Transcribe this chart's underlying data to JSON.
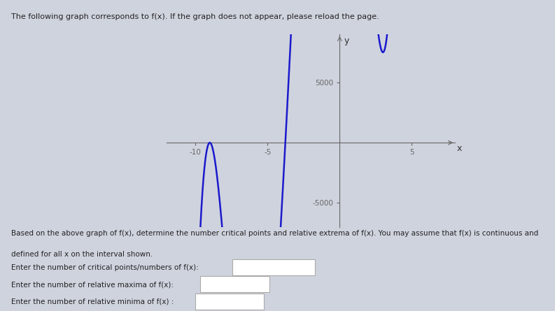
{
  "title_text": "The following graph corresponds to f(x). If the graph does not appear, please reload the page.",
  "bg_color": "#cfd3de",
  "curve_color": "#1a1acc",
  "axis_color": "#666666",
  "xlim": [
    -12,
    8
  ],
  "ylim": [
    -7000,
    9000
  ],
  "xlabel": "x",
  "ylabel": "y",
  "xtick_vals": [
    -10,
    -5,
    5
  ],
  "xtick_labels": [
    "-10",
    "-5",
    "5"
  ],
  "ytick_vals": [
    -5000,
    5000
  ],
  "ytick_labels": [
    "-5000",
    "5000"
  ],
  "text_line1": "Based on the above graph of f(x), determine the number critical points and relative extrema of f(x). You may assume that f(x) is continuous and",
  "text_line2": "defined for all x on the interval shown.",
  "input_labels": [
    "Enter the number of critical points/numbers of f(x):",
    "Enter the number of relative maxima of f(x): ",
    "Enter the number of relative minima of f(x) :"
  ],
  "title_fontsize": 8.0,
  "body_fontsize": 7.5,
  "input_fontsize": 7.5
}
